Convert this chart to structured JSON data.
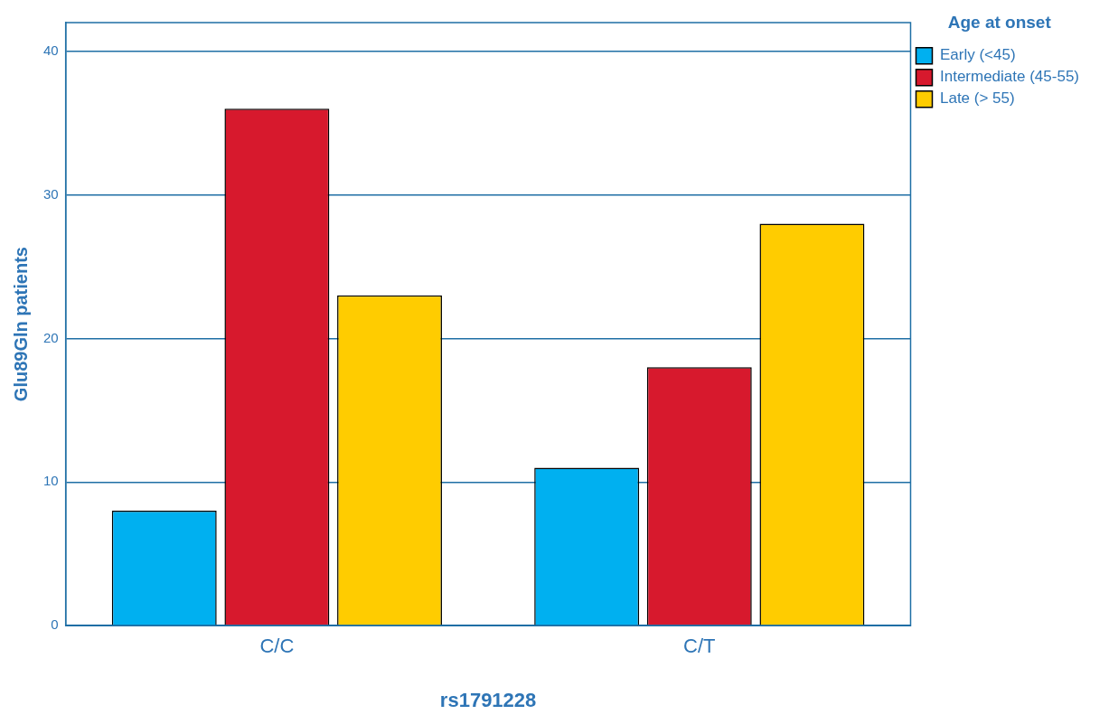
{
  "chart_data": {
    "type": "bar",
    "xlabel": "rs1791228",
    "ylabel": "Glu89Gln patients",
    "legend_title": "Age at onset",
    "categories": [
      "C/C",
      "C/T"
    ],
    "series": [
      {
        "name": "Early (<45)",
        "color": "#00b0f0",
        "values": [
          8,
          11
        ]
      },
      {
        "name": "Intermediate (45-55)",
        "color": "#d7192d",
        "values": [
          36,
          18
        ]
      },
      {
        "name": "Late (> 55)",
        "color": "#ffcc00",
        "values": [
          23,
          28
        ]
      }
    ],
    "ylim": [
      0,
      42
    ],
    "yticks": [
      0,
      10,
      20,
      30,
      40
    ],
    "grid": "y",
    "legend": "top right"
  }
}
